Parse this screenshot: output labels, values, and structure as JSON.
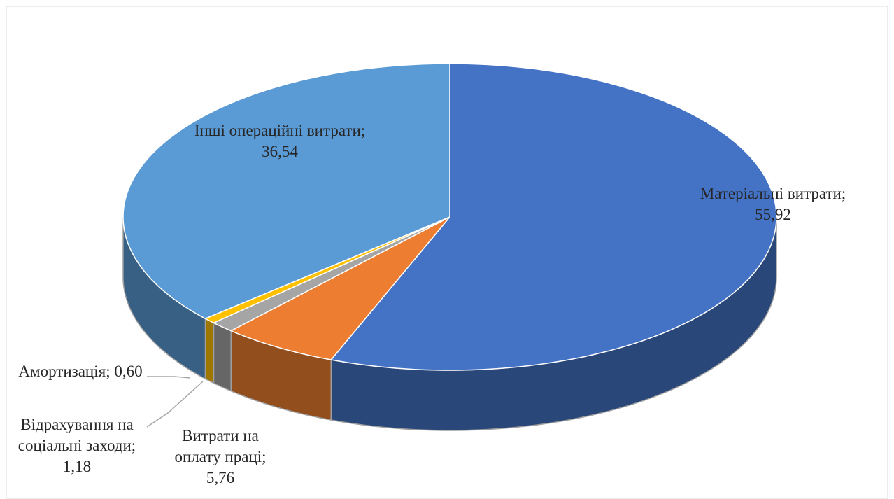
{
  "chart_data": {
    "type": "pie",
    "categories": [
      "Матеріальні витрати",
      "Витрати на оплату праці",
      "Відрахування на соціальні заходи",
      "Амортизація",
      "Інші операційні витрати"
    ],
    "values": [
      55.92,
      5.76,
      1.18,
      0.6,
      36.54
    ],
    "value_labels": [
      "55,92",
      "5,76",
      "1,18",
      "0,60",
      "36,54"
    ],
    "label_separator": "; ",
    "colors": [
      "#4472c4",
      "#ed7d31",
      "#a5a5a5",
      "#ffc000",
      "#5b9bd5"
    ]
  }
}
